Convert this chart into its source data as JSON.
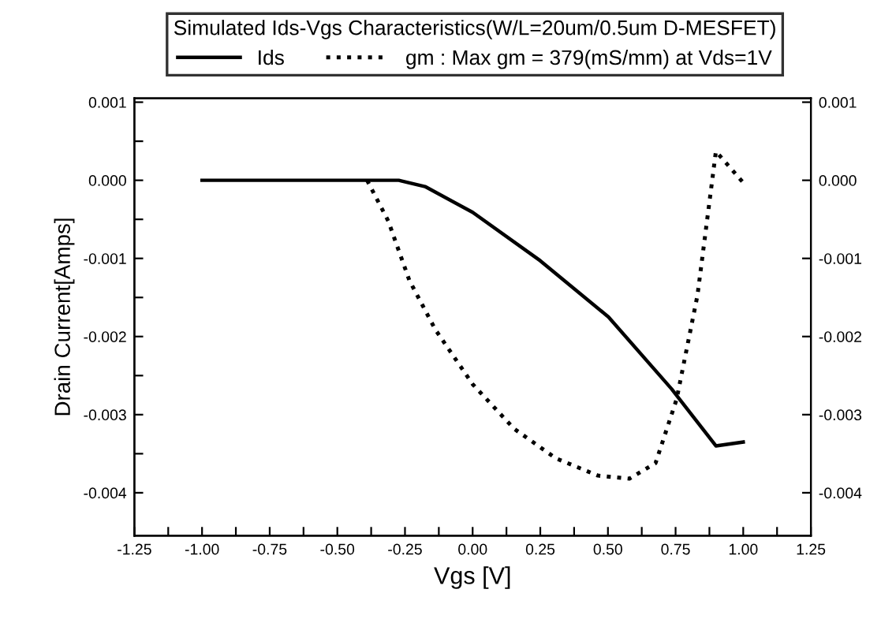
{
  "chart_data": {
    "type": "line",
    "title": "Simulated Ids-Vgs Characteristics(W/L=20um/0.5um D-MESFET)",
    "xlabel": "Vgs [V]",
    "ylabel": "Drain Current[Amps]",
    "series": [
      {
        "name": "Ids",
        "color": "#000000",
        "line_style": "solid",
        "x": [
          -1.0,
          -0.273,
          -0.176,
          0.0,
          0.25,
          0.502,
          0.735,
          0.899,
          1.0
        ],
        "values": [
          0,
          0,
          -8e-05,
          -0.00041,
          -0.00103,
          -0.00175,
          -0.00267,
          -0.0034,
          -0.00335
        ]
      },
      {
        "name": "gm : Max gm = 379(mS/mm) at Vds=1V",
        "color": "#000000",
        "line_style": "dotted",
        "x": [
          -0.39,
          -0.312,
          -0.234,
          -0.138,
          0.0,
          0.153,
          0.308,
          0.463,
          0.579,
          0.676,
          0.754,
          0.831,
          0.899,
          1.0
        ],
        "values": [
          0,
          -0.00052,
          -0.00128,
          -0.00191,
          -0.00261,
          -0.00318,
          -0.00356,
          -0.00378,
          -0.00382,
          -0.00362,
          -0.0028,
          -0.00147,
          0.00037,
          -3e-05
        ]
      }
    ],
    "xlim": [
      -1.25,
      1.25
    ],
    "xticks": [
      {
        "value": -1.25,
        "label": "-1.25"
      },
      {
        "value": -1.125,
        "label": null
      },
      {
        "value": -1.0,
        "label": "-1.00"
      },
      {
        "value": -0.875,
        "label": null
      },
      {
        "value": -0.75,
        "label": "-0.75"
      },
      {
        "value": -0.625,
        "label": null
      },
      {
        "value": -0.5,
        "label": "-0.50"
      },
      {
        "value": -0.375,
        "label": null
      },
      {
        "value": -0.25,
        "label": "-0.25"
      },
      {
        "value": -0.125,
        "label": null
      },
      {
        "value": 0.0,
        "label": "0.00"
      },
      {
        "value": 0.125,
        "label": null
      },
      {
        "value": 0.25,
        "label": "0.25"
      },
      {
        "value": 0.375,
        "label": null
      },
      {
        "value": 0.5,
        "label": "0.50"
      },
      {
        "value": 0.625,
        "label": null
      },
      {
        "value": 0.75,
        "label": "0.75"
      },
      {
        "value": 0.875,
        "label": null
      },
      {
        "value": 1.0,
        "label": "1.00"
      },
      {
        "value": 1.125,
        "label": null
      },
      {
        "value": 1.25,
        "label": "1.25"
      }
    ],
    "ylim": [
      -0.00455,
      0.00105
    ],
    "yticks": [
      {
        "value": 0.001,
        "label": "0.001"
      },
      {
        "value": 0.0005,
        "label": null
      },
      {
        "value": 0.0,
        "label": "0.000"
      },
      {
        "value": -0.0005,
        "label": null
      },
      {
        "value": -0.001,
        "label": "-0.001"
      },
      {
        "value": -0.0015,
        "label": null
      },
      {
        "value": -0.002,
        "label": "-0.002"
      },
      {
        "value": -0.0025,
        "label": null
      },
      {
        "value": -0.003,
        "label": "-0.003"
      },
      {
        "value": -0.0035,
        "label": null
      },
      {
        "value": -0.004,
        "label": "-0.004"
      }
    ],
    "y2lim": [
      -0.00455,
      0.00105
    ],
    "y2ticks": [
      {
        "value": 0.001,
        "label": "0.001"
      },
      {
        "value": 0.0,
        "label": "0.000"
      },
      {
        "value": -0.001,
        "label": "-0.001"
      },
      {
        "value": -0.002,
        "label": "-0.002"
      },
      {
        "value": -0.003,
        "label": "-0.003"
      },
      {
        "value": -0.004,
        "label": "-0.004"
      }
    ],
    "grid": false,
    "legend": "top",
    "marker": "none"
  }
}
